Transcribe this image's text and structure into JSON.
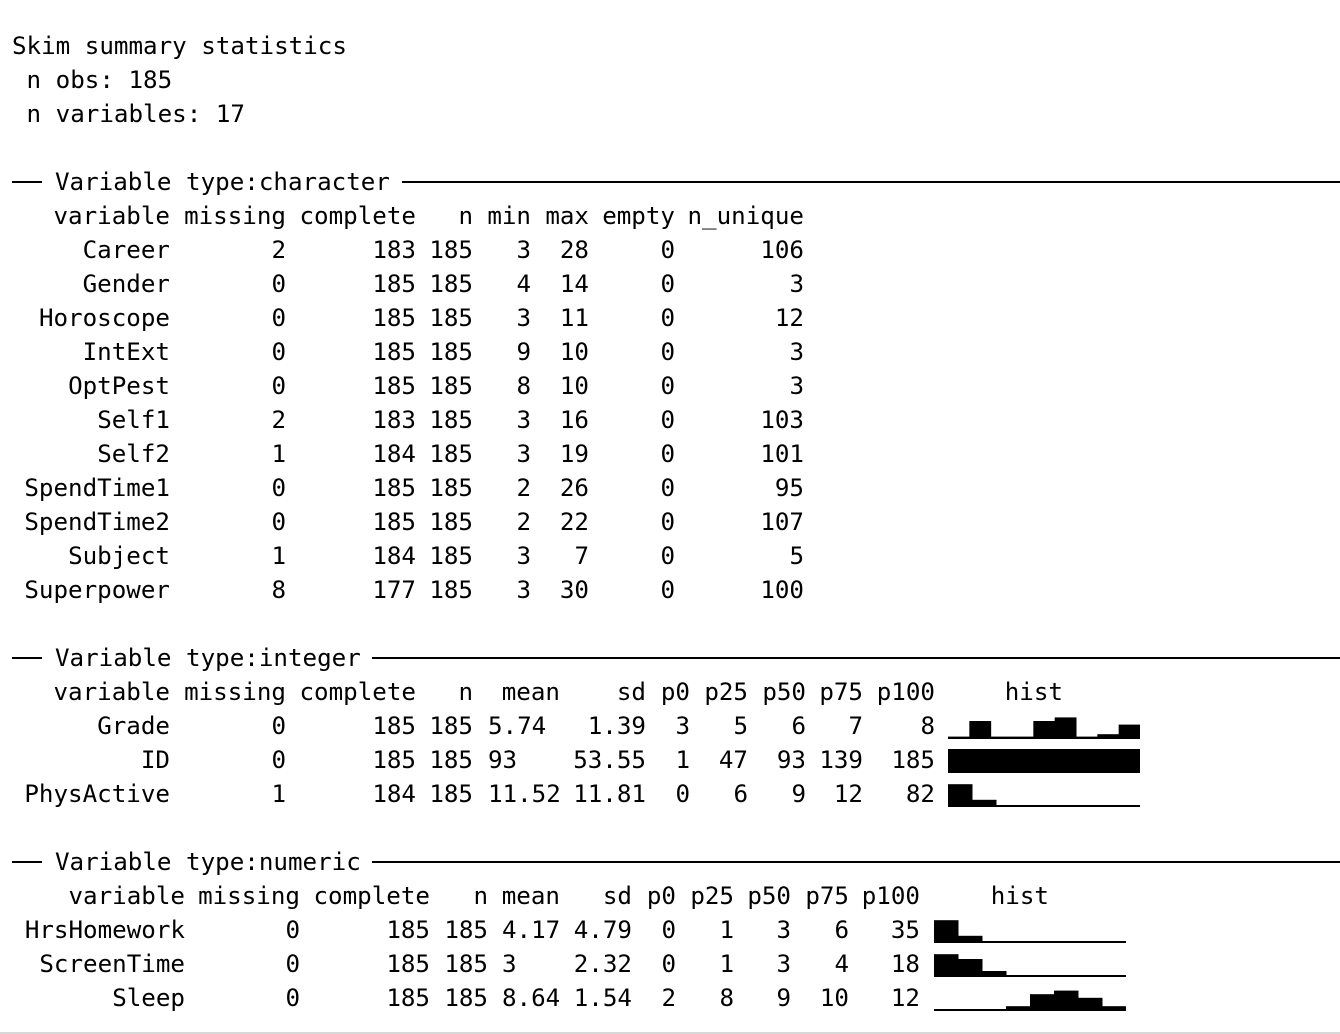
{
  "header": {
    "title": "Skim summary statistics",
    "n_obs_label": " n obs: 185",
    "n_vars_label": " n variables: 17"
  },
  "character": {
    "section_label": "Variable type:character",
    "columns": [
      "variable",
      "missing",
      "complete",
      "n",
      "min",
      "max",
      "empty",
      "n_unique"
    ],
    "rows": [
      [
        "Career",
        "2",
        "183",
        "185",
        "3",
        "28",
        "0",
        "106"
      ],
      [
        "Gender",
        "0",
        "185",
        "185",
        "4",
        "14",
        "0",
        "3"
      ],
      [
        "Horoscope",
        "0",
        "185",
        "185",
        "3",
        "11",
        "0",
        "12"
      ],
      [
        "IntExt",
        "0",
        "185",
        "185",
        "9",
        "10",
        "0",
        "3"
      ],
      [
        "OptPest",
        "0",
        "185",
        "185",
        "8",
        "10",
        "0",
        "3"
      ],
      [
        "Self1",
        "2",
        "183",
        "185",
        "3",
        "16",
        "0",
        "103"
      ],
      [
        "Self2",
        "1",
        "184",
        "185",
        "3",
        "19",
        "0",
        "101"
      ],
      [
        "SpendTime1",
        "0",
        "185",
        "185",
        "2",
        "26",
        "0",
        "95"
      ],
      [
        "SpendTime2",
        "0",
        "185",
        "185",
        "2",
        "22",
        "0",
        "107"
      ],
      [
        "Subject",
        "1",
        "184",
        "185",
        "3",
        "7",
        "0",
        "5"
      ],
      [
        "Superpower",
        "8",
        "177",
        "185",
        "3",
        "30",
        "0",
        "100"
      ]
    ]
  },
  "integer": {
    "section_label": "Variable type:integer",
    "columns": [
      "variable",
      "missing",
      "complete",
      "n",
      "mean",
      "sd",
      "p0",
      "p25",
      "p50",
      "p75",
      "p100",
      "hist"
    ],
    "rows": [
      {
        "cells": [
          "Grade",
          "0",
          "185",
          "185",
          "5.74",
          "1.39",
          "3",
          "5",
          "6",
          "7",
          "8"
        ],
        "hist": [
          0.1,
          0.75,
          0.1,
          0.1,
          0.75,
          0.9,
          0.1,
          0.2,
          0.6
        ]
      },
      {
        "cells": [
          "ID",
          "0",
          "185",
          "185",
          "93",
          "53.55",
          "1",
          "47",
          "93",
          "139",
          "185"
        ],
        "hist": [
          1,
          1,
          1,
          1,
          1,
          1,
          1,
          1
        ]
      },
      {
        "cells": [
          "PhysActive",
          "1",
          "184",
          "185",
          "11.52",
          "11.81",
          "0",
          "6",
          "9",
          "12",
          "82"
        ],
        "hist": [
          0.95,
          0.3,
          0.05,
          0.05,
          0.05,
          0.05,
          0.05,
          0.05
        ]
      }
    ]
  },
  "numeric": {
    "section_label": "Variable type:numeric",
    "columns": [
      "variable",
      "missing",
      "complete",
      "n",
      "mean",
      "sd",
      "p0",
      "p25",
      "p50",
      "p75",
      "p100",
      "hist"
    ],
    "rows": [
      {
        "cells": [
          "HrsHomework",
          "0",
          "185",
          "185",
          "4.17",
          "4.79",
          "0",
          "1",
          "3",
          "6",
          "35"
        ],
        "hist": [
          0.95,
          0.3,
          0.05,
          0.05,
          0.05,
          0.05,
          0.05,
          0.05
        ]
      },
      {
        "cells": [
          "ScreenTime",
          "0",
          "185",
          "185",
          "3",
          "2.32",
          "0",
          "1",
          "3",
          "4",
          "18"
        ],
        "hist": [
          0.95,
          0.75,
          0.25,
          0.05,
          0.05,
          0.05,
          0.05,
          0.05
        ]
      },
      {
        "cells": [
          "Sleep",
          "0",
          "185",
          "185",
          "8.64",
          "1.54",
          "2",
          "8",
          "9",
          "10",
          "12"
        ],
        "hist": [
          0.05,
          0.05,
          0.05,
          0.2,
          0.7,
          0.85,
          0.55,
          0.2
        ]
      }
    ]
  }
}
